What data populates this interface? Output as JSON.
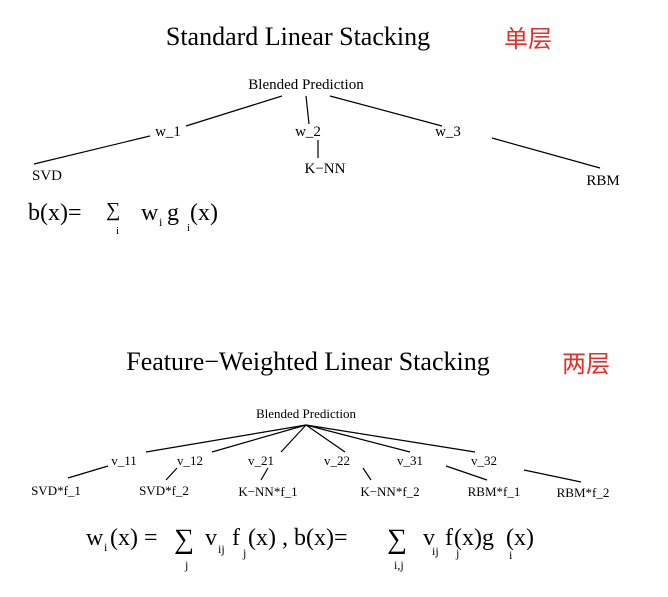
{
  "top": {
    "title": "Standard Linear Stacking",
    "tag": "单层",
    "root": "Blended Prediction",
    "weights": [
      "w_1",
      "w_2",
      "w_3"
    ],
    "leaves": [
      "SVD",
      "K−NN",
      "RBM"
    ],
    "formula": {
      "lhs": "b(x)=",
      "sigma": "∑",
      "sigma_sub": "i",
      "w": "w",
      "w_sub": "i",
      "g": "g",
      "g_sub": "i",
      "arg": "(x)"
    }
  },
  "bottom": {
    "title": "Feature−Weighted Linear Stacking",
    "tag": "两层",
    "root": "Blended Prediction",
    "weights": [
      "v_11",
      "v_12",
      "v_21",
      "v_22",
      "v_31",
      "v_32"
    ],
    "leaves": [
      "SVD*f_1",
      "SVD*f_2",
      "K−NN*f_1",
      "K−NN*f_2",
      "RBM*f_1",
      "RBM*f_2"
    ],
    "formula": {
      "w": "w",
      "w_sub": "i",
      "w_arg": "(x) =",
      "sigma1": "∑",
      "sigma1_sub": "j",
      "v1": "v",
      "v1_sub": "ij",
      "f1": "f",
      "f1_sub": "j",
      "part1_end": "(x) , b(x)=",
      "sigma2": "∑",
      "sigma2_sub": "i,j",
      "v2": "v",
      "v2_sub": "ij",
      "f2": "f",
      "f2_sub": "j",
      "mid": "(x)g",
      "g_sub": "i",
      "end": "(x)"
    }
  }
}
